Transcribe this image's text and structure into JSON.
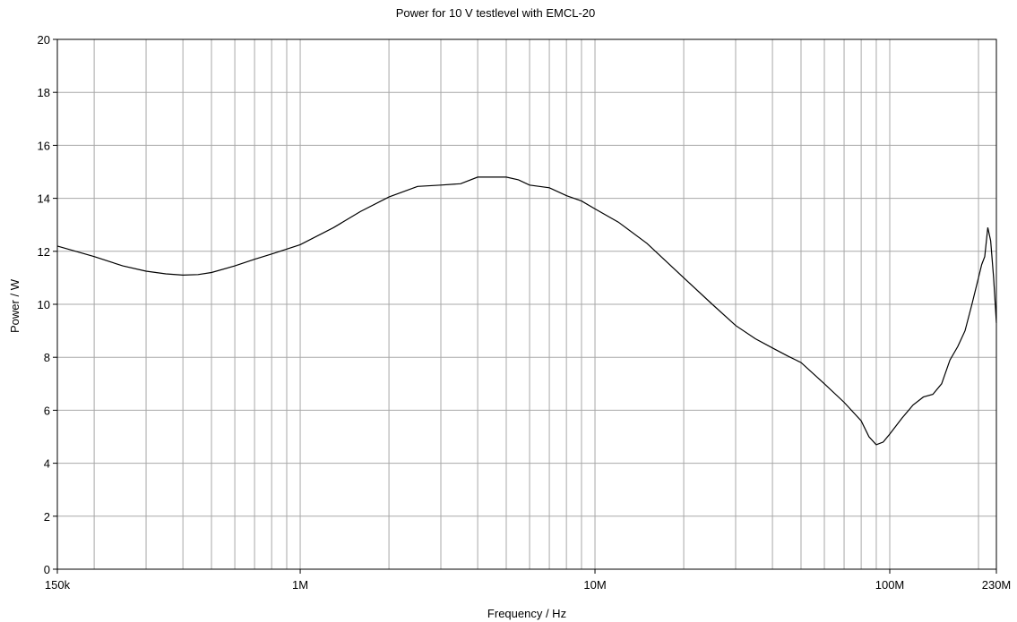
{
  "chart_data": {
    "type": "line",
    "title": "Power for 10 V testlevel with EMCL-20",
    "xlabel": "Frequency / Hz",
    "ylabel": "Power / W",
    "x_scale": "log",
    "xlim": [
      150000,
      230000000
    ],
    "ylim": [
      0,
      20
    ],
    "grid": true,
    "x_tick_labels": [
      {
        "value": 150000,
        "label": "150k"
      },
      {
        "value": 1000000,
        "label": "1M"
      },
      {
        "value": 10000000,
        "label": "10M"
      },
      {
        "value": 100000000,
        "label": "100M"
      },
      {
        "value": 230000000,
        "label": "230M"
      }
    ],
    "y_ticks": [
      0,
      2,
      4,
      6,
      8,
      10,
      12,
      14,
      16,
      18,
      20
    ],
    "series": [
      {
        "color": "#000000",
        "x": [
          150000,
          200000,
          250000,
          300000,
          350000,
          400000,
          450000,
          500000,
          600000,
          700000,
          800000,
          1000000,
          1300000,
          1600000,
          2000000,
          2500000,
          3000000,
          3500000,
          4000000,
          4500000,
          5000000,
          5500000,
          6000000,
          7000000,
          8000000,
          9000000,
          10000000,
          12000000,
          15000000,
          20000000,
          25000000,
          30000000,
          35000000,
          40000000,
          45000000,
          50000000,
          60000000,
          70000000,
          80000000,
          85000000,
          90000000,
          95000000,
          100000000,
          110000000,
          120000000,
          130000000,
          140000000,
          150000000,
          160000000,
          170000000,
          180000000,
          190000000,
          200000000,
          205000000,
          210000000,
          215000000,
          220000000,
          225000000,
          230000000
        ],
        "y": [
          12.2,
          11.8,
          11.45,
          11.25,
          11.15,
          11.1,
          11.12,
          11.2,
          11.45,
          11.7,
          11.9,
          12.25,
          12.9,
          13.5,
          14.05,
          14.45,
          14.5,
          14.55,
          14.8,
          14.8,
          14.8,
          14.7,
          14.5,
          14.4,
          14.1,
          13.9,
          13.6,
          13.1,
          12.3,
          11.0,
          10.0,
          9.2,
          8.7,
          8.35,
          8.05,
          7.8,
          7.0,
          6.3,
          5.6,
          5.0,
          4.7,
          4.8,
          5.1,
          5.7,
          6.2,
          6.5,
          6.6,
          7.0,
          7.9,
          8.4,
          9.0,
          10.0,
          11.0,
          11.5,
          11.8,
          12.9,
          12.4,
          11.0,
          9.3
        ]
      }
    ]
  }
}
